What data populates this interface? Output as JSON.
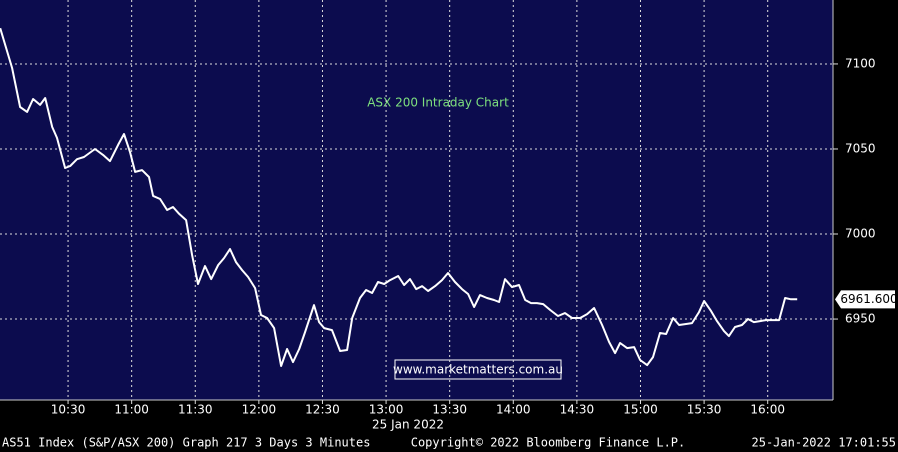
{
  "chart_data": {
    "type": "line",
    "title": "ASX 200 Intraday Chart",
    "annotation": "www.marketmatters.com.au",
    "date_label": "25 Jan 2022",
    "footer_left": "AS51 Index (S&P/ASX 200) Graph 217 3 Days 3 Minutes",
    "footer_center": "Copyright© 2022 Bloomberg Finance L.P.",
    "footer_right": "25-Jan-2022 17:01:55",
    "x": [
      598,
      603.6,
      607.4,
      610.7,
      613.5,
      616.8,
      619.2,
      622.5,
      624.8,
      628.6,
      631,
      634.2,
      637.5,
      642.7,
      646.5,
      649.8,
      653.6,
      656.4,
      659.2,
      661.6,
      664.9,
      668.2,
      670.1,
      673.4,
      676.7,
      679.5,
      682.4,
      685.7,
      688.5,
      691.3,
      694.6,
      697.5,
      700.8,
      703.6,
      706.4,
      709.2,
      712.1,
      714.9,
      718.2,
      721,
      723.9,
      727.2,
      730.5,
      733.3,
      736.1,
      739,
      741.8,
      746,
      748.4,
      750.8,
      754.5,
      758.3,
      761.6,
      764,
      767.7,
      770.6,
      773.4,
      776.2,
      779.1,
      781.9,
      785.7,
      788.5,
      791.3,
      794.2,
      797,
      799.8,
      803.1,
      806.4,
      809.2,
      812.5,
      815.8,
      818.7,
      821.5,
      824.3,
      827.6,
      830.9,
      833.3,
      836.1,
      839.4,
      842.7,
      845.6,
      848.4,
      851.2,
      854.1,
      857.4,
      861.1,
      864.4,
      867.7,
      871.5,
      874.8,
      878.1,
      881.9,
      885.2,
      888,
      890.4,
      893.7,
      897,
      899.8,
      903.1,
      905.9,
      909.2,
      912.1,
      915.4,
      918.2,
      921.5,
      924.3,
      927.6,
      930,
      933.3,
      936.1,
      939.4,
      941.7,
      944.6,
      947.9,
      950.7,
      953.5,
      956.4,
      959.2,
      962.1,
      965.4,
      968.2,
      971,
      973.9
    ],
    "series": [
      {
        "name": "AS51 Index",
        "color": "#ffffff",
        "values": [
          7121,
          7097.6,
          7074.7,
          7071.8,
          7079.4,
          7075.9,
          7080,
          7062.9,
          7056.5,
          7038.8,
          7040,
          7044,
          7045.3,
          7050,
          7046.5,
          7042.9,
          7052.4,
          7058.8,
          7048.2,
          7036.5,
          7037.6,
          7033.5,
          7022.4,
          7020.6,
          7014.1,
          7015.9,
          7011.8,
          7008.2,
          6987.6,
          6970.6,
          6981.2,
          6973.5,
          6981.8,
          6985.9,
          6991.2,
          6983.5,
          6978.8,
          6974.7,
          6968.2,
          6952.4,
          6950.6,
          6944.7,
          6922.4,
          6932.4,
          6924.7,
          6932.4,
          6942.4,
          6958.2,
          6948.2,
          6944.7,
          6943.5,
          6931.2,
          6931.8,
          6950.6,
          6962.4,
          6967.1,
          6965.3,
          6971.8,
          6970.6,
          6972.9,
          6975.3,
          6970,
          6973.5,
          6967.6,
          6969.4,
          6966.5,
          6969.4,
          6972.9,
          6977.1,
          6971.8,
          6967.6,
          6964.7,
          6957.1,
          6964.1,
          6962.4,
          6961.2,
          6960,
          6973.5,
          6968.8,
          6970,
          6961.2,
          6959.4,
          6959.4,
          6958.8,
          6955.3,
          6951.8,
          6953.5,
          6950.6,
          6950.6,
          6952.9,
          6956.5,
          6946.5,
          6936.5,
          6930,
          6935.9,
          6932.9,
          6933.5,
          6925.9,
          6922.9,
          6927.6,
          6941.8,
          6941.2,
          6950.6,
          6946.5,
          6947.1,
          6947.6,
          6954.1,
          6960.6,
          6954.7,
          6948.8,
          6942.9,
          6940,
          6945.3,
          6946.5,
          6950,
          6948.2,
          6948.8,
          6949.4,
          6949.4,
          6949.4,
          6962.4,
          6961.6,
          6961.6
        ]
      }
    ],
    "last_value": {
      "value": 6961.6,
      "label": "6961.600"
    },
    "xlim": [
      597.9,
      990.8
    ],
    "xticks": [
      {
        "value": 630,
        "label": "10:30"
      },
      {
        "value": 660,
        "label": "11:00"
      },
      {
        "value": 690,
        "label": "11:30"
      },
      {
        "value": 720,
        "label": "12:00"
      },
      {
        "value": 750,
        "label": "12:30"
      },
      {
        "value": 780,
        "label": "13:00"
      },
      {
        "value": 810,
        "label": "13:30"
      },
      {
        "value": 840,
        "label": "14:00"
      },
      {
        "value": 870,
        "label": "14:30"
      },
      {
        "value": 900,
        "label": "15:00"
      },
      {
        "value": 930,
        "label": "15:30"
      },
      {
        "value": 960,
        "label": "16:00"
      }
    ],
    "ylim": [
      6902.4,
      7137.6
    ],
    "yticks": [
      6950,
      7000,
      7050,
      7100
    ],
    "grid": true,
    "background": "#0c0c4e"
  }
}
